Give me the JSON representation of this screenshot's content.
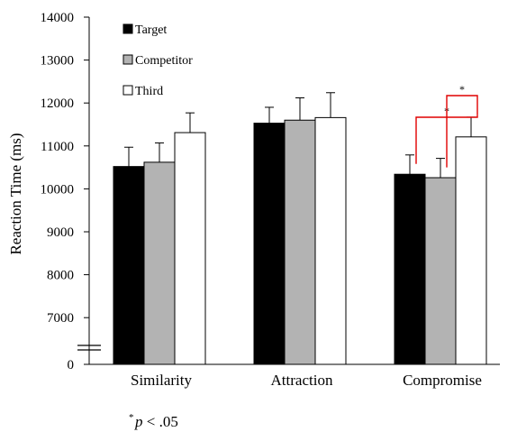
{
  "chart_data": {
    "type": "bar",
    "title": "",
    "xlabel": "",
    "ylabel": "Reaction Time (ms)",
    "categories": [
      "Similarity",
      "Attraction",
      "Compromise"
    ],
    "series": [
      {
        "name": "Target",
        "color": "#000000",
        "values": [
          10520,
          11530,
          10340
        ],
        "errors": [
          450,
          370,
          450
        ]
      },
      {
        "name": "Competitor",
        "color": "#b3b3b3",
        "values": [
          10620,
          11600,
          10260
        ],
        "errors": [
          450,
          520,
          450
        ]
      },
      {
        "name": "Third",
        "color": "#ffffff",
        "values": [
          11310,
          11660,
          11210
        ],
        "errors": [
          460,
          580,
          460
        ]
      }
    ],
    "y_ticks": [
      "0",
      "7000",
      "8000",
      "9000",
      "10000",
      "11000",
      "12000",
      "13000",
      "14000"
    ],
    "y_axis": {
      "break": true,
      "break_bottom": 0,
      "range_after_break": [
        6500,
        14000
      ]
    },
    "legend": {
      "position": "top-left"
    },
    "grid": false,
    "significance": [
      {
        "category": "Compromise",
        "between": [
          "Target",
          "Third"
        ],
        "label": "*"
      },
      {
        "category": "Compromise",
        "between": [
          "Competitor",
          "Third"
        ],
        "label": "*"
      }
    ],
    "significance_color": "#e00000",
    "footnote": {
      "star": "*",
      "text": "p < .05"
    }
  }
}
